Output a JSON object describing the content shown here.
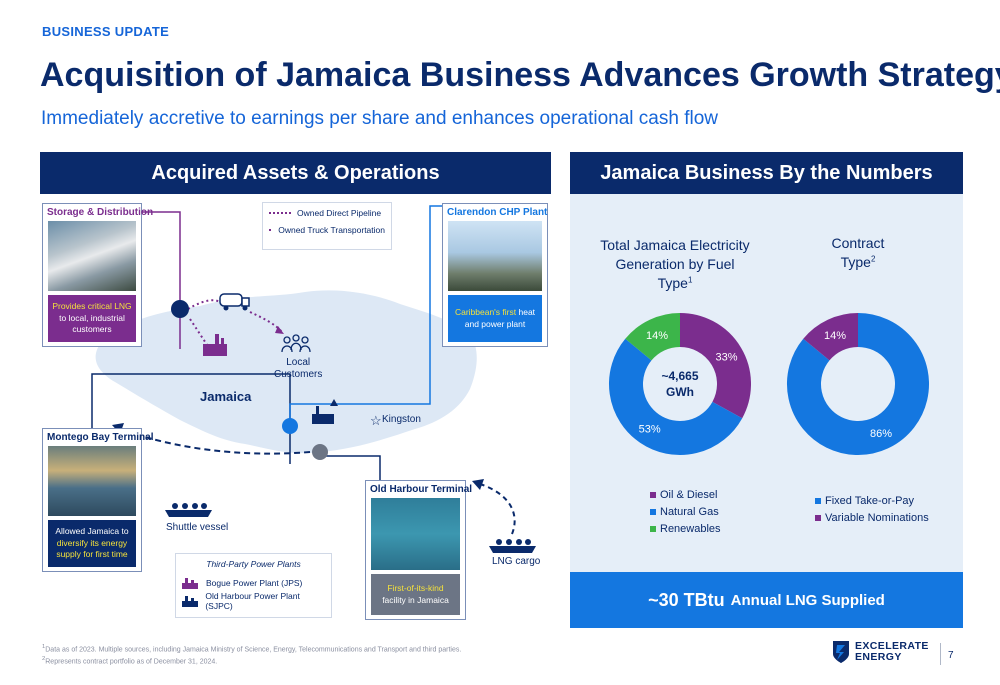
{
  "kicker": "BUSINESS UPDATE",
  "title": "Acquisition of Jamaica Business Advances Growth Strategy",
  "subtitle": "Immediately accretive to earnings per share and enhances operational cash flow",
  "left_panel": {
    "header": "Acquired Assets & Operations",
    "legend": {
      "pipeline": "Owned Direct Pipeline",
      "truck": "Owned Truck Transportation"
    },
    "map_labels": {
      "island": "Jamaica",
      "local_customers_1": "Local",
      "local_customers_2": "Customers",
      "kingston": "Kingston",
      "shuttle_vessel": "Shuttle vessel",
      "lng_cargo": "LNG cargo"
    },
    "storage": {
      "title": "Storage & Distribution",
      "cap_hl": "Provides critical LNG",
      "cap_rest": "to local, industrial customers"
    },
    "clarendon": {
      "title": "Clarendon CHP Plant",
      "cap_hl": "Caribbean's first",
      "cap_rest1": "heat",
      "cap_rest2": "and power plant"
    },
    "montego": {
      "title": "Montego Bay Terminal",
      "cap_line1": "Allowed Jamaica to",
      "cap_hl1": "diversify its energy",
      "cap_hl2": "supply for first time"
    },
    "old_harbour": {
      "title": "Old Harbour Terminal",
      "cap_hl": "First-of-its-kind",
      "cap_rest": "facility in Jamaica"
    },
    "third_party": {
      "title": "Third-Party Power Plants",
      "items": [
        "Bogue Power Plant (JPS)",
        "Old Harbour Power Plant (SJPC)"
      ]
    }
  },
  "right_panel": {
    "header": "Jamaica Business By the Numbers",
    "fuel_chart": {
      "title_line1": "Total Jamaica Electricity",
      "title_line2": "Generation by Fuel Type",
      "title_sup": "1",
      "center_line1": "~4,665",
      "center_line2": "GWh",
      "legend": [
        "Oil & Diesel",
        "Natural Gas",
        "Renewables"
      ]
    },
    "contract_chart": {
      "title_line1": "Contract",
      "title_line2": "Type",
      "title_sup": "2",
      "legend": [
        "Fixed Take-or-Pay",
        "Variable Nominations"
      ]
    },
    "banner": {
      "big": "~30 TBtu",
      "rest": "Annual LNG Supplied"
    }
  },
  "chart_data": [
    {
      "type": "pie",
      "title": "Total Jamaica Electricity Generation by Fuel Type",
      "categories": [
        "Oil & Diesel",
        "Natural Gas",
        "Renewables"
      ],
      "values": [
        33,
        53,
        14
      ],
      "labels": [
        "33%",
        "53%",
        "14%"
      ],
      "colors": [
        "#7b2d8e",
        "#1477e0",
        "#3cb54a"
      ],
      "center_text": "~4,665 GWh"
    },
    {
      "type": "pie",
      "title": "Contract Type",
      "categories": [
        "Fixed Take-or-Pay",
        "Variable Nominations"
      ],
      "values": [
        86,
        14
      ],
      "labels": [
        "86%",
        "14%"
      ],
      "colors": [
        "#1477e0",
        "#7b2d8e"
      ]
    }
  ],
  "footer": {
    "note1_sup": "1",
    "note1": "Data as of 2023. Multiple sources, including Jamaica Ministry of Science, Energy, Telecommunications and Transport and third parties.",
    "note2_sup": "2",
    "note2": "Represents contract portfolio as of December 31, 2024."
  },
  "logo": {
    "line1": "EXCELERATE",
    "line2": "ENERGY"
  },
  "page_number": "7",
  "colors": {
    "navy": "#0a2a6b",
    "blue": "#1477e0",
    "purple": "#7b2d8e",
    "green": "#3cb54a",
    "highlight": "#f5e23b",
    "panel_bg": "#e5eef8"
  }
}
